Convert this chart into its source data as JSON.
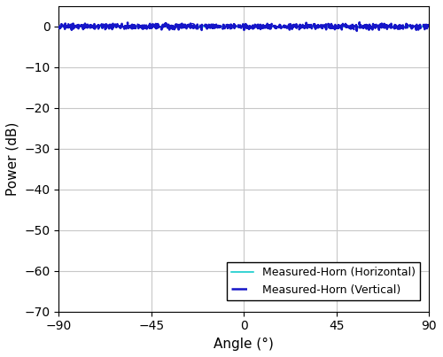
{
  "title": "",
  "xlabel": "Angle (°)",
  "ylabel": "Power (dB)",
  "xlim": [
    -90,
    90
  ],
  "ylim": [
    -70,
    5
  ],
  "xticks": [
    -90,
    -45,
    0,
    45,
    90
  ],
  "yticks": [
    0,
    -10,
    -20,
    -30,
    -40,
    -50,
    -60,
    -70
  ],
  "horizontal_color": "#00C8C8",
  "vertical_color": "#1515C8",
  "grid_color": "#C8C8C8",
  "background_color": "#FFFFFF",
  "legend_labels": [
    "Measured-Horn (Horizontal)",
    "Measured-Horn (Vertical)"
  ],
  "figsize": [
    5.0,
    4.03
  ],
  "dpi": 100
}
